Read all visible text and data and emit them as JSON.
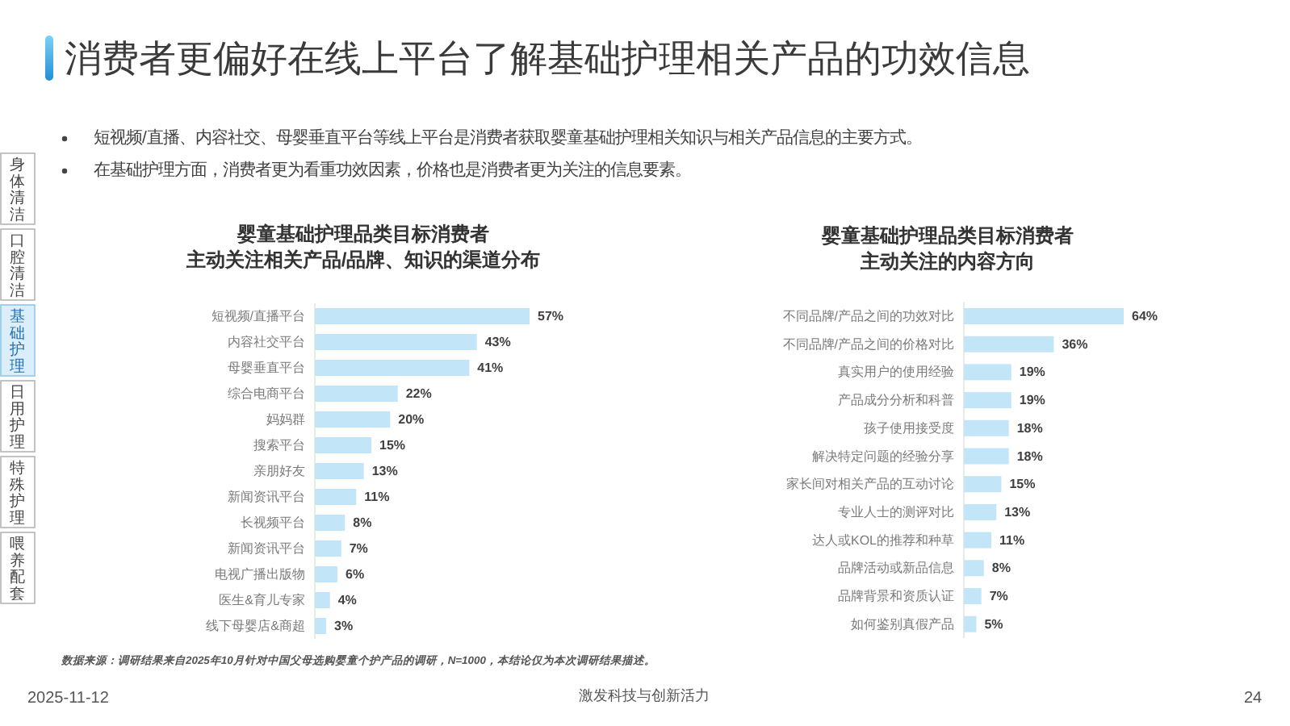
{
  "chart_data": [
    {
      "type": "other",
      "title": "消费者更偏好在线上平台了解基础护理相关产品的功效信息",
      "annotations": [
        "短视频/直播、内容社交、母婴垂直平台等线上平台是消费者获取婴童基础护理相关知识与相关产品信息的主要方式。",
        "在基础护理方面，消费者更为看重功效因素，价格也是消费者更为关注的信息要素。",
        "身体清洁",
        "口腔清洁",
        "基础护理",
        "日用护理",
        "特殊护理",
        "喂养配套",
        "数据来源：调研结果来自2025年10月针对中国父母选购婴童个护产品的调研，N=1000，本结论仅为本次调研结果描述。",
        "2025-11-12",
        "激发科技与创新活力",
        "24"
      ]
    },
    {
      "type": "bar",
      "orientation": "horizontal",
      "title": "婴童基础护理品类目标消费者主动关注相关产品/品牌、知识的渠道分布",
      "categories": [
        "短视频/直播平台",
        "内容社交平台",
        "母婴垂直平台",
        "综合电商平台",
        "妈妈群",
        "搜索平台",
        "亲朋好友",
        "新闻资讯平台",
        "长视频平台",
        "新闻资讯平台",
        "电视广播出版物",
        "医生&育儿专家",
        "线下母婴店&商超"
      ],
      "values": [
        57,
        43,
        41,
        22,
        20,
        15,
        13,
        11,
        8,
        7,
        6,
        4,
        3
      ],
      "value_labels": [
        "57%",
        "43%",
        "41%",
        "22%",
        "20%",
        "15%",
        "13%",
        "11%",
        "8%",
        "7%",
        "6%",
        "4%",
        "3%"
      ],
      "color": "#c2e5f8"
    },
    {
      "type": "bar",
      "orientation": "horizontal",
      "title": "婴童基础护理品类目标消费者主动关注的内容方向",
      "categories": [
        "不同品牌/产品之间的功效对比",
        "不同品牌/产品之间的价格对比",
        "真实用户的使用经验",
        "产品成分分析和科普",
        "孩子使用接受度",
        "解决特定问题的经验分享",
        "家长间对相关产品的互动讨论",
        "专业人士的测评对比",
        "达人或KOL的推荐和种草",
        "品牌活动或新品信息",
        "品牌背景和资质认证",
        "如何鉴别真假产品"
      ],
      "values": [
        64,
        36,
        19,
        19,
        18,
        18,
        15,
        13,
        11,
        8,
        7,
        5
      ],
      "value_labels": [
        "64%",
        "36%",
        "19%",
        "19%",
        "18%",
        "18%",
        "15%",
        "13%",
        "11%",
        "8%",
        "7%",
        "5%"
      ],
      "color": "#c2e5f8"
    }
  ]
}
